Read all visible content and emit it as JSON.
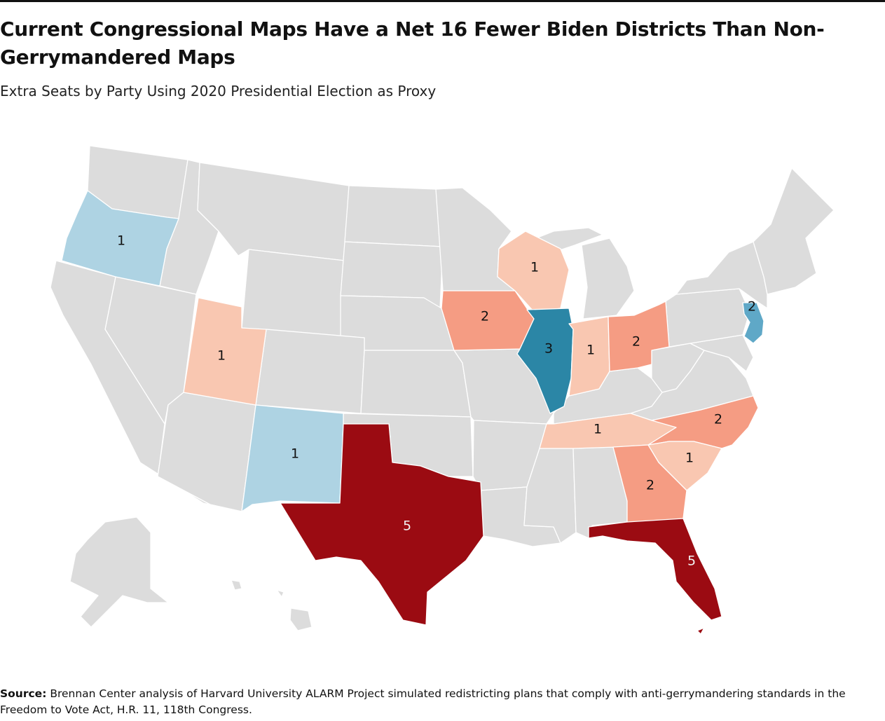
{
  "title": "Current Congressional Maps Have a Net 16 Fewer Biden Districts Than Non-Gerrymandered Maps",
  "subtitle": "Extra Seats by Party Using 2020 Presidential Election as Proxy",
  "colors": {
    "neutral": "#dcdcdc",
    "dem_1": "#aed3e3",
    "dem_2": "#5fa8c7",
    "dem_3": "#2b86a6",
    "rep_1": "#f9c7b1",
    "rep_2": "#f59c83",
    "rep_5": "#9b0b12"
  },
  "states": [
    {
      "name": "Oregon",
      "party": "dem",
      "seats": "1"
    },
    {
      "name": "Utah",
      "party": "rep",
      "seats": "1"
    },
    {
      "name": "New Mexico",
      "party": "dem",
      "seats": "1"
    },
    {
      "name": "Texas",
      "party": "rep",
      "seats": "5"
    },
    {
      "name": "Iowa",
      "party": "rep",
      "seats": "2"
    },
    {
      "name": "Wisconsin",
      "party": "rep",
      "seats": "1"
    },
    {
      "name": "Illinois",
      "party": "dem",
      "seats": "3"
    },
    {
      "name": "Indiana",
      "party": "rep",
      "seats": "1"
    },
    {
      "name": "Ohio",
      "party": "rep",
      "seats": "2"
    },
    {
      "name": "Tennessee",
      "party": "rep",
      "seats": "1"
    },
    {
      "name": "North Carolina",
      "party": "rep",
      "seats": "2"
    },
    {
      "name": "South Carolina",
      "party": "rep",
      "seats": "1"
    },
    {
      "name": "Georgia",
      "party": "rep",
      "seats": "2"
    },
    {
      "name": "Florida",
      "party": "rep",
      "seats": "5"
    },
    {
      "name": "New Jersey",
      "party": "dem",
      "seats": "2"
    }
  ],
  "source": {
    "label": "Source:",
    "text": "Brennan Center analysis of Harvard University ALARM Project simulated redistricting plans that comply with anti-gerrymandering standards in the Freedom to Vote Act, H.R. 11, 118th Congress."
  }
}
